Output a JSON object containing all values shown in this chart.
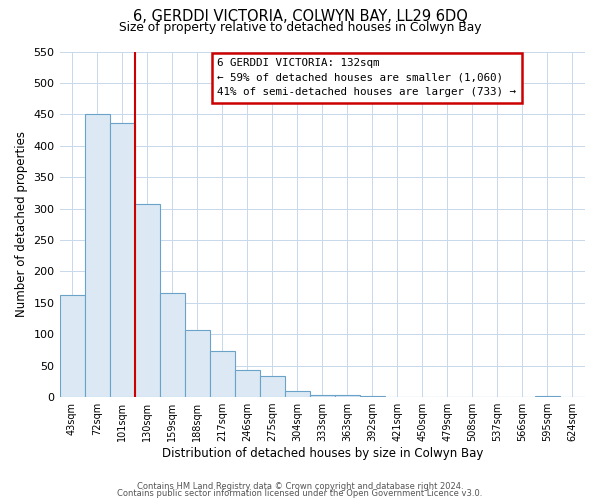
{
  "title": "6, GERDDI VICTORIA, COLWYN BAY, LL29 6DQ",
  "subtitle": "Size of property relative to detached houses in Colwyn Bay",
  "xlabel": "Distribution of detached houses by size in Colwyn Bay",
  "ylabel": "Number of detached properties",
  "bar_labels": [
    "43sqm",
    "72sqm",
    "101sqm",
    "130sqm",
    "159sqm",
    "188sqm",
    "217sqm",
    "246sqm",
    "275sqm",
    "304sqm",
    "333sqm",
    "363sqm",
    "392sqm",
    "421sqm",
    "450sqm",
    "479sqm",
    "508sqm",
    "537sqm",
    "566sqm",
    "595sqm",
    "624sqm"
  ],
  "bar_heights": [
    162,
    450,
    437,
    307,
    165,
    107,
    74,
    43,
    33,
    10,
    4,
    4,
    2,
    0,
    0,
    0,
    0,
    0,
    0,
    2,
    0
  ],
  "bar_fill_color": "#dce9f5",
  "bar_edge_color": "#6ba3c8",
  "vline_color": "#cc0000",
  "vline_index": 3,
  "ylim": [
    0,
    550
  ],
  "yticks": [
    0,
    50,
    100,
    150,
    200,
    250,
    300,
    350,
    400,
    450,
    500,
    550
  ],
  "annotation_text": "6 GERDDI VICTORIA: 132sqm\n← 59% of detached houses are smaller (1,060)\n41% of semi-detached houses are larger (733) →",
  "annotation_box_color": "#ffffff",
  "annotation_border_color": "#cc0000",
  "footer_line1": "Contains HM Land Registry data © Crown copyright and database right 2024.",
  "footer_line2": "Contains public sector information licensed under the Open Government Licence v3.0.",
  "background_color": "#ffffff",
  "grid_color": "#c8d8ec"
}
